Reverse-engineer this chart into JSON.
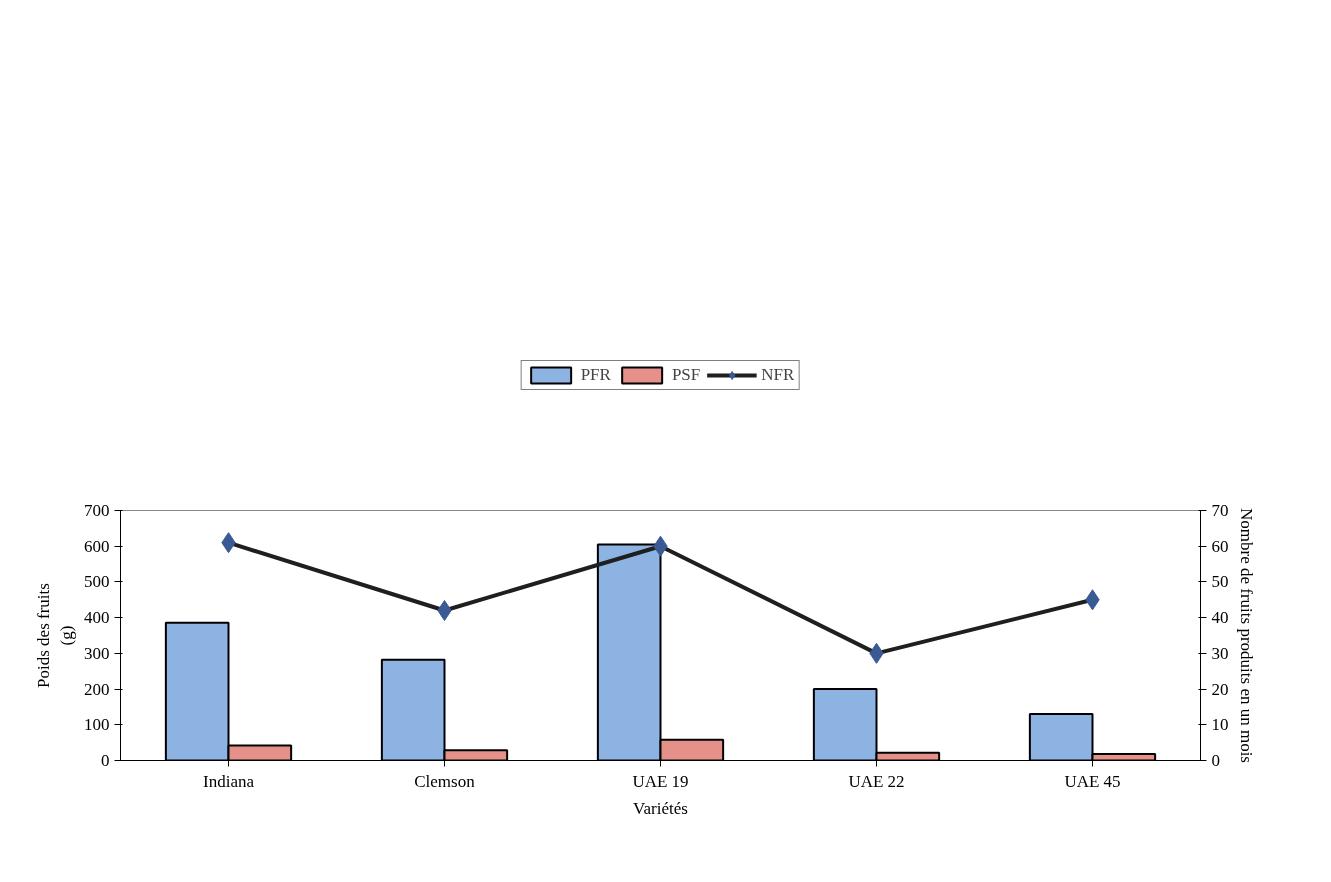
{
  "chart_data": {
    "type": "bar",
    "xlabel": "Variétés",
    "ylabel": "Poids des fruits\n(g)",
    "y2label": "Nombre de fruits produits en un mois",
    "categories": [
      "Indiana",
      "Clemson",
      "UAE 19",
      "UAE 22",
      "UAE 45"
    ],
    "series": [
      {
        "name": "PFR",
        "color": "#8db3e2",
        "values": [
          386,
          282,
          605,
          200,
          130
        ]
      },
      {
        "name": "PSF",
        "color": "#e6908a",
        "values": [
          42,
          29,
          58,
          22,
          18
        ]
      },
      {
        "name": "NFR",
        "type": "line",
        "axis": "y2",
        "color": "#1f1f1f",
        "marker": "diamond",
        "values": [
          61,
          42,
          60,
          30,
          45
        ]
      }
    ],
    "ylim": [
      0,
      700
    ],
    "yticks": [
      0,
      100,
      200,
      300,
      400,
      500,
      600,
      700
    ],
    "y2lim": [
      0,
      70
    ],
    "y2ticks": [
      0,
      10,
      20,
      30,
      40,
      50,
      60,
      70
    ],
    "grid": false,
    "legend": "top"
  }
}
